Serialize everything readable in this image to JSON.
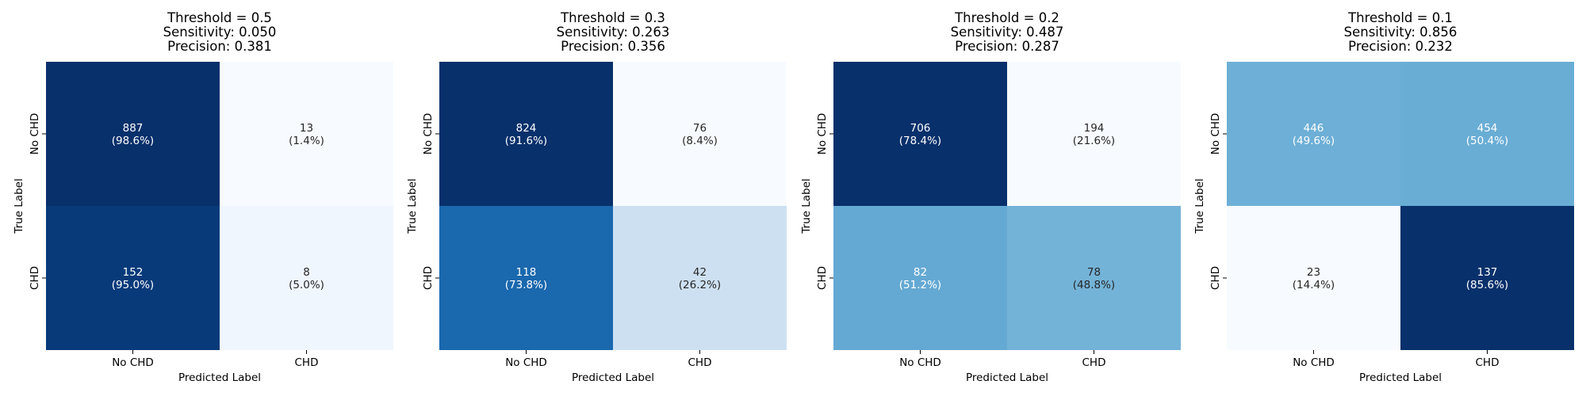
{
  "chart_data": [
    {
      "type": "heatmap",
      "title_lines": [
        "Threshold = 0.5",
        "Sensitivity: 0.050",
        "Precision: 0.381"
      ],
      "xlabel": "Predicted Label",
      "ylabel": "True Label",
      "x_categories": [
        "No CHD",
        "CHD"
      ],
      "y_categories": [
        "No CHD",
        "CHD"
      ],
      "counts": [
        [
          887,
          13
        ],
        [
          152,
          8
        ]
      ],
      "percent_labels": [
        [
          "(98.6%)",
          "(1.4%)"
        ],
        [
          "(95.0%)",
          "(5.0%)"
        ]
      ],
      "color_values": [
        [
          0.986,
          0.014
        ],
        [
          0.95,
          0.05
        ]
      ]
    },
    {
      "type": "heatmap",
      "title_lines": [
        "Threshold = 0.3",
        "Sensitivity: 0.263",
        "Precision: 0.356"
      ],
      "xlabel": "Predicted Label",
      "ylabel": "True Label",
      "x_categories": [
        "No CHD",
        "CHD"
      ],
      "y_categories": [
        "No CHD",
        "CHD"
      ],
      "counts": [
        [
          824,
          76
        ],
        [
          118,
          42
        ]
      ],
      "percent_labels": [
        [
          "(91.6%)",
          "(8.4%)"
        ],
        [
          "(73.8%)",
          "(26.2%)"
        ]
      ],
      "color_values": [
        [
          0.916,
          0.084
        ],
        [
          0.738,
          0.262
        ]
      ]
    },
    {
      "type": "heatmap",
      "title_lines": [
        "Threshold = 0.2",
        "Sensitivity: 0.487",
        "Precision: 0.287"
      ],
      "xlabel": "Predicted Label",
      "ylabel": "True Label",
      "x_categories": [
        "No CHD",
        "CHD"
      ],
      "y_categories": [
        "No CHD",
        "CHD"
      ],
      "counts": [
        [
          706,
          194
        ],
        [
          82,
          78
        ]
      ],
      "percent_labels": [
        [
          "(78.4%)",
          "(21.6%)"
        ],
        [
          "(51.2%)",
          "(48.8%)"
        ]
      ],
      "color_values": [
        [
          0.784,
          0.216
        ],
        [
          0.512,
          0.488
        ]
      ]
    },
    {
      "type": "heatmap",
      "title_lines": [
        "Threshold = 0.1",
        "Sensitivity: 0.856",
        "Precision: 0.232"
      ],
      "xlabel": "Predicted Label",
      "ylabel": "True Label",
      "x_categories": [
        "No CHD",
        "CHD"
      ],
      "y_categories": [
        "No CHD",
        "CHD"
      ],
      "counts": [
        [
          446,
          454
        ],
        [
          23,
          137
        ]
      ],
      "percent_labels": [
        [
          "(49.6%)",
          "(50.4%)"
        ],
        [
          "(14.4%)",
          "(85.6%)"
        ]
      ],
      "color_values": [
        [
          0.496,
          0.504
        ],
        [
          0.144,
          0.856
        ]
      ]
    }
  ],
  "colormap": "Blues",
  "colorbar": false
}
